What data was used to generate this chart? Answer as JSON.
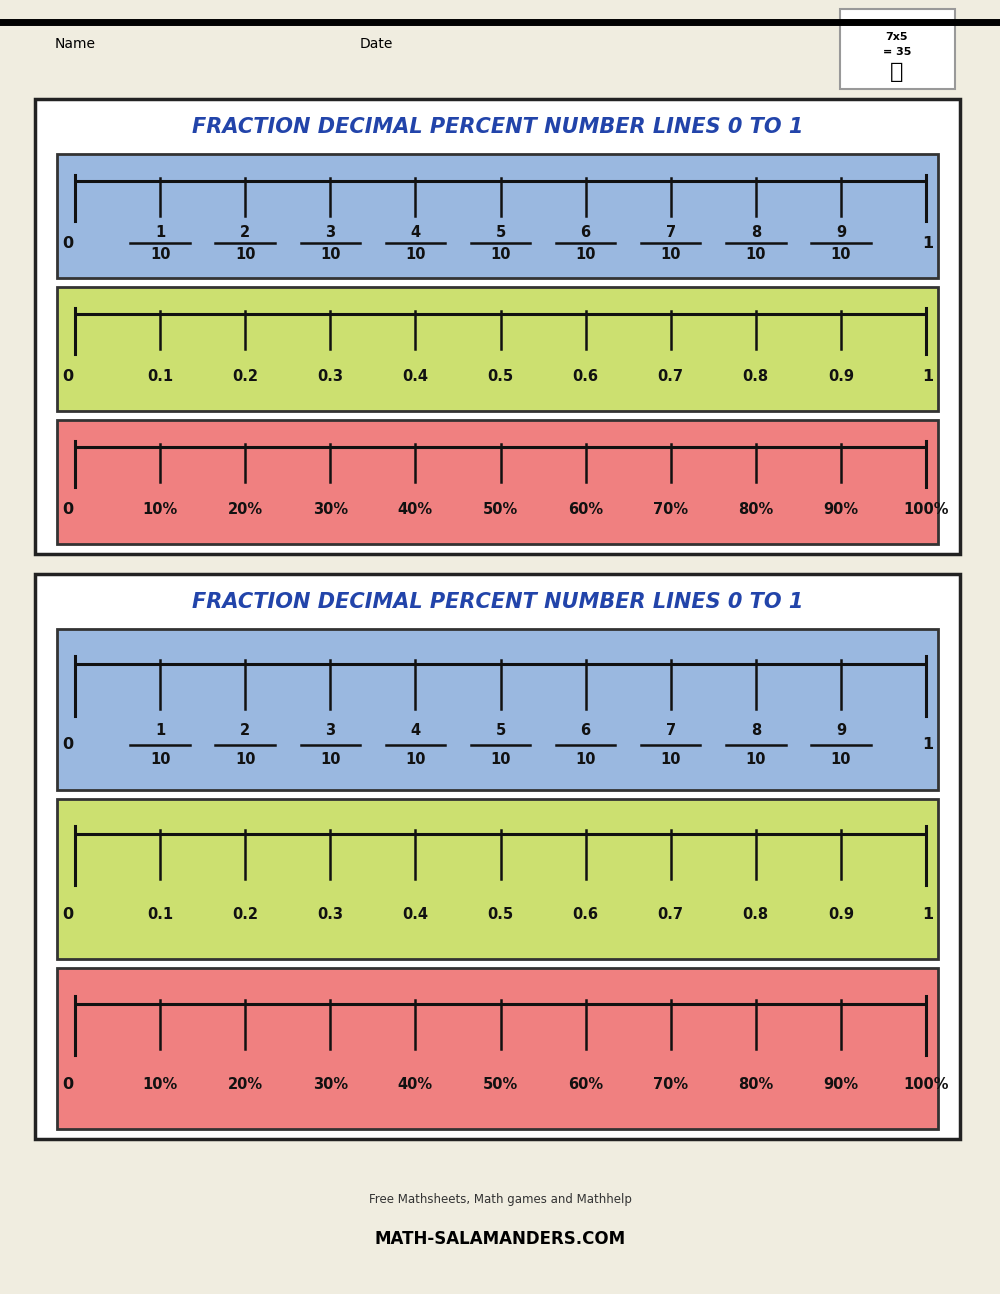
{
  "title": "FRACTION DECIMAL PERCENT NUMBER LINES 0 TO 1",
  "title_color": "#2244aa",
  "page_bg": "#f0ede0",
  "header_name": "Name",
  "header_date": "Date",
  "blue_bg": "#9ab8e0",
  "green_bg": "#cce070",
  "red_bg": "#f08080",
  "line_color": "#111111",
  "fraction_labels": [
    "1",
    "2",
    "3",
    "4",
    "5",
    "6",
    "7",
    "8",
    "9"
  ],
  "decimal_labels": [
    "0.1",
    "0.2",
    "0.3",
    "0.4",
    "0.5",
    "0.6",
    "0.7",
    "0.8",
    "0.9"
  ],
  "percent_labels": [
    "10%",
    "20%",
    "30%",
    "40%",
    "50%",
    "60%",
    "70%",
    "80%",
    "90%",
    "100%"
  ],
  "box_border_color": "#333333",
  "outer_border_color": "#222222",
  "card_bg": "#ffffff"
}
